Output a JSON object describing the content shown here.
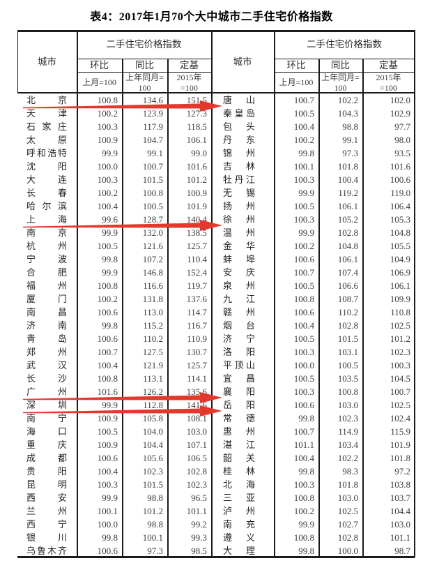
{
  "title": "表4：2017年1月70个大中城市二手住宅价格指数",
  "table": {
    "city_header": "城市",
    "group_header": "二手住宅价格指数",
    "measure_headers": [
      "环比",
      "同比",
      "定基"
    ],
    "base_headers": [
      "上月=100",
      "上年同月=\n100",
      "2015年\n=100"
    ]
  },
  "rows": [
    {
      "left": {
        "city": "北京",
        "mom": "100.8",
        "yoy": "134.6",
        "fixed": "151.5"
      },
      "right": {
        "city": "唐山",
        "mom": "100.7",
        "yoy": "102.2",
        "fixed": "102.0"
      }
    },
    {
      "left": {
        "city": "天津",
        "mom": "100.2",
        "yoy": "123.9",
        "fixed": "127.3"
      },
      "right": {
        "city": "秦皇岛",
        "mom": "100.5",
        "yoy": "104.3",
        "fixed": "102.9"
      }
    },
    {
      "left": {
        "city": "石家庄",
        "mom": "100.3",
        "yoy": "117.9",
        "fixed": "118.5"
      },
      "right": {
        "city": "包头",
        "mom": "100.4",
        "yoy": "98.8",
        "fixed": "97.7"
      }
    },
    {
      "left": {
        "city": "太原",
        "mom": "100.9",
        "yoy": "104.7",
        "fixed": "106.1"
      },
      "right": {
        "city": "丹东",
        "mom": "100.2",
        "yoy": "99.1",
        "fixed": "98.0"
      }
    },
    {
      "left": {
        "city": "呼和浩特",
        "mom": "99.9",
        "yoy": "99.1",
        "fixed": "99.0"
      },
      "right": {
        "city": "锦州",
        "mom": "99.8",
        "yoy": "97.3",
        "fixed": "93.5"
      }
    },
    {
      "left": {
        "city": "沈阳",
        "mom": "100.0",
        "yoy": "100.7",
        "fixed": "101.6"
      },
      "right": {
        "city": "吉林",
        "mom": "100.1",
        "yoy": "101.8",
        "fixed": "101.6"
      }
    },
    {
      "left": {
        "city": "大连",
        "mom": "100.3",
        "yoy": "101.5",
        "fixed": "101.2"
      },
      "right": {
        "city": "牡丹江",
        "mom": "100.3",
        "yoy": "100.4",
        "fixed": "100.6"
      }
    },
    {
      "left": {
        "city": "长春",
        "mom": "100.2",
        "yoy": "100.8",
        "fixed": "100.9"
      },
      "right": {
        "city": "无锡",
        "mom": "99.9",
        "yoy": "119.2",
        "fixed": "119.0"
      }
    },
    {
      "left": {
        "city": "哈尔滨",
        "mom": "100.4",
        "yoy": "100.5",
        "fixed": "101.9"
      },
      "right": {
        "city": "扬州",
        "mom": "100.5",
        "yoy": "106.1",
        "fixed": "106.4"
      }
    },
    {
      "left": {
        "city": "上海",
        "mom": "99.6",
        "yoy": "128.7",
        "fixed": "140.4"
      },
      "right": {
        "city": "徐州",
        "mom": "100.3",
        "yoy": "105.2",
        "fixed": "105.3"
      }
    },
    {
      "left": {
        "city": "南京",
        "mom": "99.9",
        "yoy": "132.0",
        "fixed": "138.5"
      },
      "right": {
        "city": "温州",
        "mom": "99.9",
        "yoy": "102.8",
        "fixed": "104.8"
      }
    },
    {
      "left": {
        "city": "杭州",
        "mom": "100.5",
        "yoy": "121.6",
        "fixed": "125.7"
      },
      "right": {
        "city": "金华",
        "mom": "100.2",
        "yoy": "104.8",
        "fixed": "105.5"
      }
    },
    {
      "left": {
        "city": "宁波",
        "mom": "99.8",
        "yoy": "107.2",
        "fixed": "110.4"
      },
      "right": {
        "city": "蚌埠",
        "mom": "100.6",
        "yoy": "106.1",
        "fixed": "104.9"
      }
    },
    {
      "left": {
        "city": "合肥",
        "mom": "99.9",
        "yoy": "146.8",
        "fixed": "152.4"
      },
      "right": {
        "city": "安庆",
        "mom": "100.7",
        "yoy": "107.4",
        "fixed": "106.9"
      }
    },
    {
      "left": {
        "city": "福州",
        "mom": "100.8",
        "yoy": "116.6",
        "fixed": "119.7"
      },
      "right": {
        "city": "泉州",
        "mom": "100.5",
        "yoy": "106.6",
        "fixed": "106.1"
      }
    },
    {
      "left": {
        "city": "厦门",
        "mom": "100.2",
        "yoy": "131.8",
        "fixed": "137.6"
      },
      "right": {
        "city": "九江",
        "mom": "100.8",
        "yoy": "108.7",
        "fixed": "109.9"
      }
    },
    {
      "left": {
        "city": "南昌",
        "mom": "100.6",
        "yoy": "113.0",
        "fixed": "114.7"
      },
      "right": {
        "city": "赣州",
        "mom": "100.6",
        "yoy": "110.2",
        "fixed": "110.8"
      }
    },
    {
      "left": {
        "city": "济南",
        "mom": "99.8",
        "yoy": "115.2",
        "fixed": "116.7"
      },
      "right": {
        "city": "烟台",
        "mom": "100.4",
        "yoy": "102.8",
        "fixed": "102.5"
      }
    },
    {
      "left": {
        "city": "青岛",
        "mom": "100.6",
        "yoy": "110.2",
        "fixed": "110.9"
      },
      "right": {
        "city": "济宁",
        "mom": "100.5",
        "yoy": "101.5",
        "fixed": "101.2"
      }
    },
    {
      "left": {
        "city": "郑州",
        "mom": "100.7",
        "yoy": "127.5",
        "fixed": "130.7"
      },
      "right": {
        "city": "洛阳",
        "mom": "100.3",
        "yoy": "103.1",
        "fixed": "102.3"
      }
    },
    {
      "left": {
        "city": "武汉",
        "mom": "100.4",
        "yoy": "121.9",
        "fixed": "125.7"
      },
      "right": {
        "city": "平顶山",
        "mom": "100.0",
        "yoy": "100.5",
        "fixed": "100.3"
      }
    },
    {
      "left": {
        "city": "长沙",
        "mom": "100.8",
        "yoy": "113.1",
        "fixed": "114.1"
      },
      "right": {
        "city": "宜昌",
        "mom": "100.5",
        "yoy": "103.5",
        "fixed": "104.5"
      }
    },
    {
      "left": {
        "city": "广州",
        "mom": "101.6",
        "yoy": "126.2",
        "fixed": "135.6"
      },
      "right": {
        "city": "襄阳",
        "mom": "100.3",
        "yoy": "100.8",
        "fixed": "100.7"
      }
    },
    {
      "left": {
        "city": "深圳",
        "mom": "99.9",
        "yoy": "112.8",
        "fixed": "141.6"
      },
      "right": {
        "city": "岳阳",
        "mom": "100.6",
        "yoy": "103.0",
        "fixed": "102.5"
      }
    },
    {
      "left": {
        "city": "南宁",
        "mom": "100.9",
        "yoy": "105.8",
        "fixed": "108.1"
      },
      "right": {
        "city": "常德",
        "mom": "99.8",
        "yoy": "102.3",
        "fixed": "102.4"
      }
    },
    {
      "left": {
        "city": "海口",
        "mom": "100.5",
        "yoy": "104.0",
        "fixed": "103.0"
      },
      "right": {
        "city": "惠州",
        "mom": "100.7",
        "yoy": "114.9",
        "fixed": "115.9"
      }
    },
    {
      "left": {
        "city": "重庆",
        "mom": "100.9",
        "yoy": "104.4",
        "fixed": "107.1"
      },
      "right": {
        "city": "湛江",
        "mom": "101.1",
        "yoy": "103.4",
        "fixed": "101.9"
      }
    },
    {
      "left": {
        "city": "成都",
        "mom": "100.6",
        "yoy": "105.6",
        "fixed": "106.5"
      },
      "right": {
        "city": "韶关",
        "mom": "100.4",
        "yoy": "102.2",
        "fixed": "101.8"
      }
    },
    {
      "left": {
        "city": "贵阳",
        "mom": "100.4",
        "yoy": "102.3",
        "fixed": "102.8"
      },
      "right": {
        "city": "桂林",
        "mom": "99.8",
        "yoy": "98.3",
        "fixed": "97.2"
      }
    },
    {
      "left": {
        "city": "昆明",
        "mom": "100.3",
        "yoy": "101.5",
        "fixed": "102.3"
      },
      "right": {
        "city": "北海",
        "mom": "100.3",
        "yoy": "101.8",
        "fixed": "103.8"
      }
    },
    {
      "left": {
        "city": "西安",
        "mom": "99.9",
        "yoy": "98.8",
        "fixed": "96.5"
      },
      "right": {
        "city": "三亚",
        "mom": "100.8",
        "yoy": "103.0",
        "fixed": "103.7"
      }
    },
    {
      "left": {
        "city": "兰州",
        "mom": "100.1",
        "yoy": "101.2",
        "fixed": "101.1"
      },
      "right": {
        "city": "泸州",
        "mom": "100.2",
        "yoy": "102.5",
        "fixed": "104.4"
      }
    },
    {
      "left": {
        "city": "西宁",
        "mom": "100.0",
        "yoy": "98.8",
        "fixed": "99.2"
      },
      "right": {
        "city": "南充",
        "mom": "99.9",
        "yoy": "102.7",
        "fixed": "103.0"
      }
    },
    {
      "left": {
        "city": "银川",
        "mom": "99.8",
        "yoy": "100.1",
        "fixed": "99.3"
      },
      "right": {
        "city": "遵义",
        "mom": "100.8",
        "yoy": "102.8",
        "fixed": "101.1"
      }
    },
    {
      "left": {
        "city": "乌鲁木齐",
        "mom": "100.6",
        "yoy": "97.3",
        "fixed": "98.5"
      },
      "right": {
        "city": "大理",
        "mom": "99.8",
        "yoy": "100.0",
        "fixed": "98.7"
      }
    }
  ],
  "annotations": {
    "arrows": [
      {
        "below_left_city": "北京",
        "points_to_right": "唐山"
      },
      {
        "below_left_city": "上海",
        "points_to_right": "徐州"
      },
      {
        "below_left_city": "广州",
        "points_to_right": "岳阳"
      },
      {
        "below_left_city": "深圳",
        "points_to_right": "常德"
      }
    ]
  },
  "colors": {
    "arrow_red": "#e3392c",
    "border": "#1a1a1a",
    "text": "#333333"
  }
}
